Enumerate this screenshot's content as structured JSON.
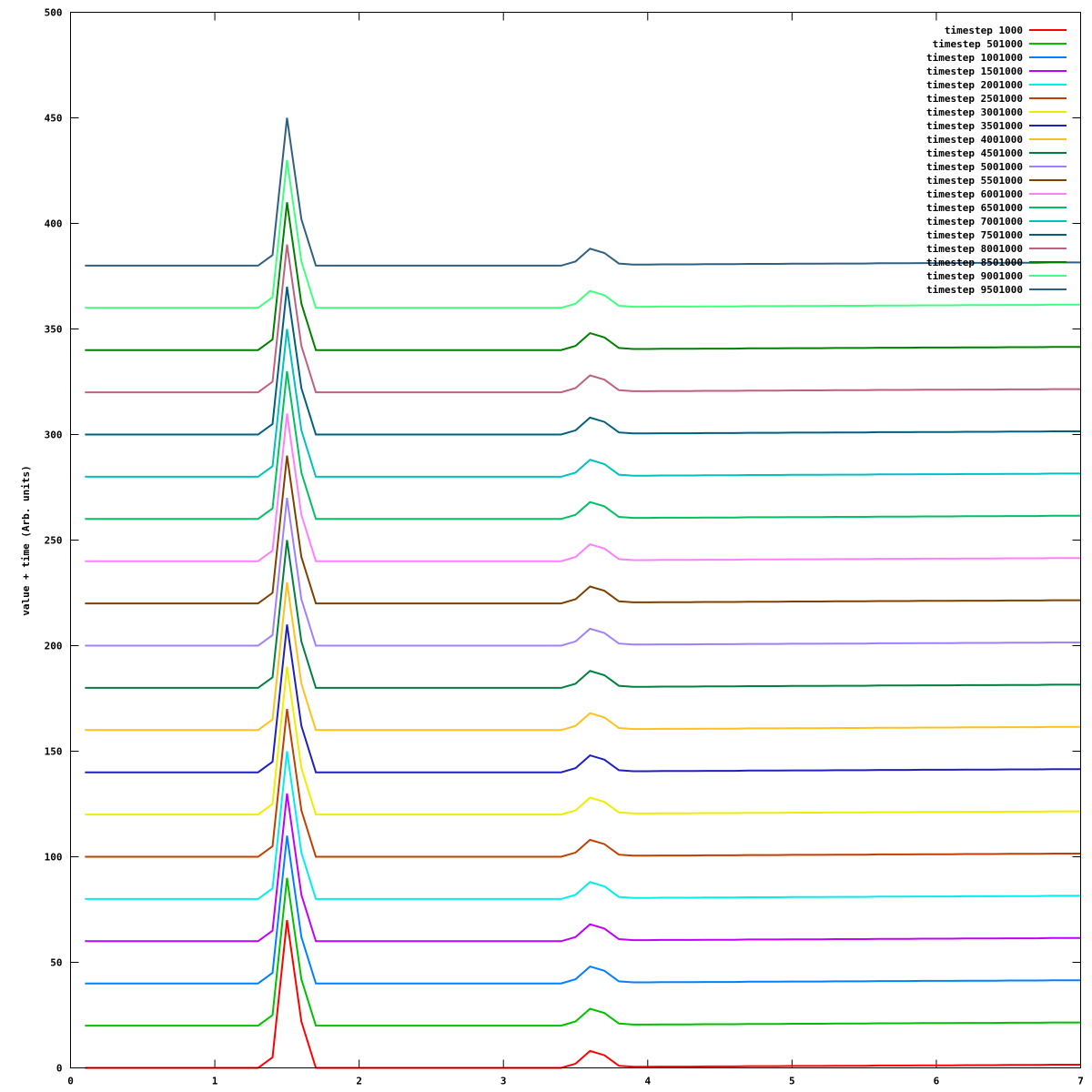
{
  "chart_data": {
    "type": "line",
    "title": "",
    "xlabel": "",
    "ylabel": "value + time (Arb. units)",
    "xlim": [
      0,
      7
    ],
    "ylim": [
      0,
      500
    ],
    "xticks": [
      "0",
      "1",
      "2",
      "3",
      "4",
      "5",
      "6",
      "7"
    ],
    "yticks": [
      "0",
      "50",
      "100",
      "150",
      "200",
      "250",
      "300",
      "350",
      "400",
      "450",
      "500"
    ],
    "grid": false,
    "legend_position": "top-right",
    "x": [
      0.1,
      0.2,
      0.3,
      0.4,
      0.5,
      0.6,
      0.7,
      0.8,
      0.9,
      1.0,
      1.1,
      1.2,
      1.3,
      1.4,
      1.5,
      1.6,
      1.7,
      1.8,
      1.9,
      2.0,
      2.1,
      2.2,
      2.3,
      2.4,
      2.5,
      2.6,
      2.7,
      2.8,
      2.9,
      3.0,
      3.1,
      3.2,
      3.3,
      3.4,
      3.5,
      3.6,
      3.7,
      3.8,
      3.9,
      4.0,
      4.1,
      4.2,
      4.3,
      4.4,
      4.5,
      4.6,
      4.7,
      4.8,
      4.9,
      5.0,
      5.1,
      5.2,
      5.3,
      5.4,
      5.5,
      5.6,
      5.7,
      5.8,
      5.9,
      6.0,
      6.1,
      6.2,
      6.3,
      6.4,
      6.5,
      6.6,
      6.7,
      6.8,
      6.9,
      7.0
    ],
    "base_profile": [
      0,
      0,
      0,
      0,
      0,
      0,
      0,
      0,
      0,
      0,
      0,
      0,
      0,
      5,
      70,
      22,
      0,
      0,
      0,
      0,
      0,
      0,
      0,
      0,
      0,
      0,
      0,
      0,
      0,
      0,
      0,
      0,
      0,
      0,
      2,
      8,
      6,
      1,
      0.5,
      0.5,
      0.6,
      0.6,
      0.6,
      0.7,
      0.7,
      0.7,
      0.8,
      0.8,
      0.8,
      0.9,
      0.9,
      0.9,
      1.0,
      1.0,
      1.0,
      1.1,
      1.1,
      1.1,
      1.2,
      1.2,
      1.2,
      1.3,
      1.3,
      1.3,
      1.4,
      1.4,
      1.4,
      1.5,
      1.5,
      1.5
    ],
    "series_note": "each series value = base_profile + offset",
    "series": [
      {
        "name": "timestep 1000",
        "offset": 0,
        "color": "#ff0000"
      },
      {
        "name": "timestep 501000",
        "offset": 20,
        "color": "#00c000"
      },
      {
        "name": "timestep 1001000",
        "offset": 40,
        "color": "#0080ff"
      },
      {
        "name": "timestep 1501000",
        "offset": 60,
        "color": "#c000ff"
      },
      {
        "name": "timestep 2001000",
        "offset": 80,
        "color": "#00eeee"
      },
      {
        "name": "timestep 2501000",
        "offset": 100,
        "color": "#c04000"
      },
      {
        "name": "timestep 3001000",
        "offset": 120,
        "color": "#eeee00"
      },
      {
        "name": "timestep 3501000",
        "offset": 140,
        "color": "#2020c0"
      },
      {
        "name": "timestep 4001000",
        "offset": 160,
        "color": "#ffc020"
      },
      {
        "name": "timestep 4501000",
        "offset": 180,
        "color": "#008040"
      },
      {
        "name": "timestep 5001000",
        "offset": 200,
        "color": "#a080ff"
      },
      {
        "name": "timestep 5501000",
        "offset": 220,
        "color": "#804000"
      },
      {
        "name": "timestep 6001000",
        "offset": 240,
        "color": "#ff80ff"
      },
      {
        "name": "timestep 6501000",
        "offset": 260,
        "color": "#00c060"
      },
      {
        "name": "timestep 7001000",
        "offset": 280,
        "color": "#00c0c0"
      },
      {
        "name": "timestep 7501000",
        "offset": 300,
        "color": "#006080"
      },
      {
        "name": "timestep 8001000",
        "offset": 320,
        "color": "#c06080"
      },
      {
        "name": "timestep 8501000",
        "offset": 340,
        "color": "#008000"
      },
      {
        "name": "timestep 9001000",
        "offset": 360,
        "color": "#40ff80"
      },
      {
        "name": "timestep 9501000",
        "offset": 380,
        "color": "#306080"
      }
    ]
  }
}
